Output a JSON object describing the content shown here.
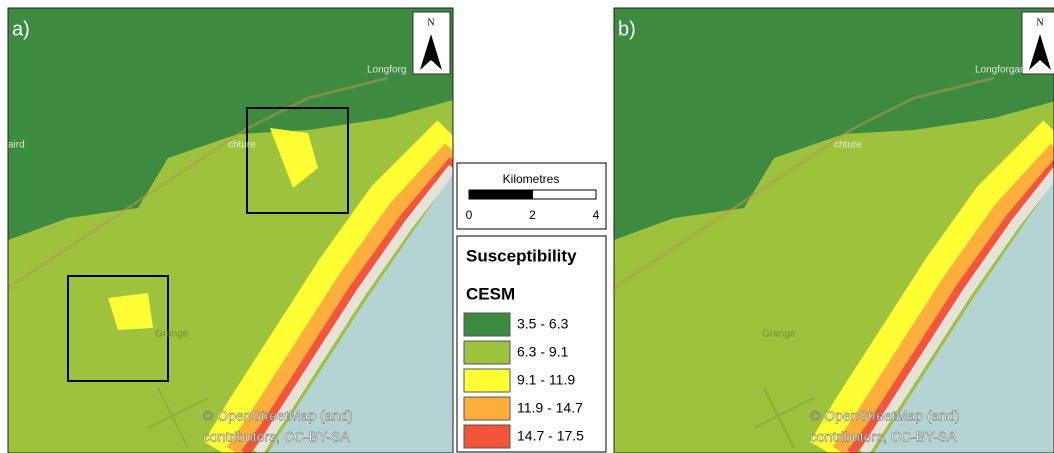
{
  "panels": [
    {
      "label": "a)",
      "north": "N",
      "places": [
        "Longforg",
        "chture",
        "aird",
        "Grange"
      ],
      "attribution": [
        "© OpenStreetMap (and)",
        "contributors, CC-BY-SA"
      ]
    },
    {
      "label": "b)",
      "north": "N",
      "places": [
        "Longforgan",
        "chture",
        "Grange"
      ],
      "attribution": [
        "© OpenStreetMap (and)",
        "contributors, CC-BY-SA"
      ]
    }
  ],
  "scale_bar": {
    "title": "Kilometres",
    "ticks": [
      0,
      2,
      4
    ]
  },
  "legend": {
    "title": "Susceptibility",
    "subtitle": "CESM",
    "classes": [
      {
        "label": "3.5 - 6.3",
        "color": "#3d8a41"
      },
      {
        "label": "6.3 - 9.1",
        "color": "#9dc23e"
      },
      {
        "label": "9.1 - 11.9",
        "color": "#ffff33"
      },
      {
        "label": "11.9 - 14.7",
        "color": "#fdae3d"
      },
      {
        "label": "14.7 - 17.5",
        "color": "#f4553a"
      }
    ]
  }
}
